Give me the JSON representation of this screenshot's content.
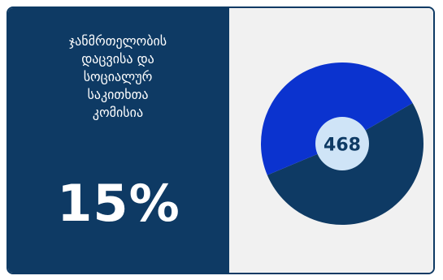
{
  "card": {
    "title": "ჯანმრთელობის\nდაცვისა და\nსოციალურ\nსაკითხთა\nკომისია",
    "percent": "15%"
  },
  "chart_data": {
    "type": "pie",
    "donut": true,
    "center_label": "468",
    "slices": [
      {
        "value": 52,
        "color": "#0e3a64"
      },
      {
        "value": 48,
        "color": "#0b33cf"
      }
    ],
    "start_angle_deg": -30,
    "hole_color": "#cfe4f7"
  }
}
